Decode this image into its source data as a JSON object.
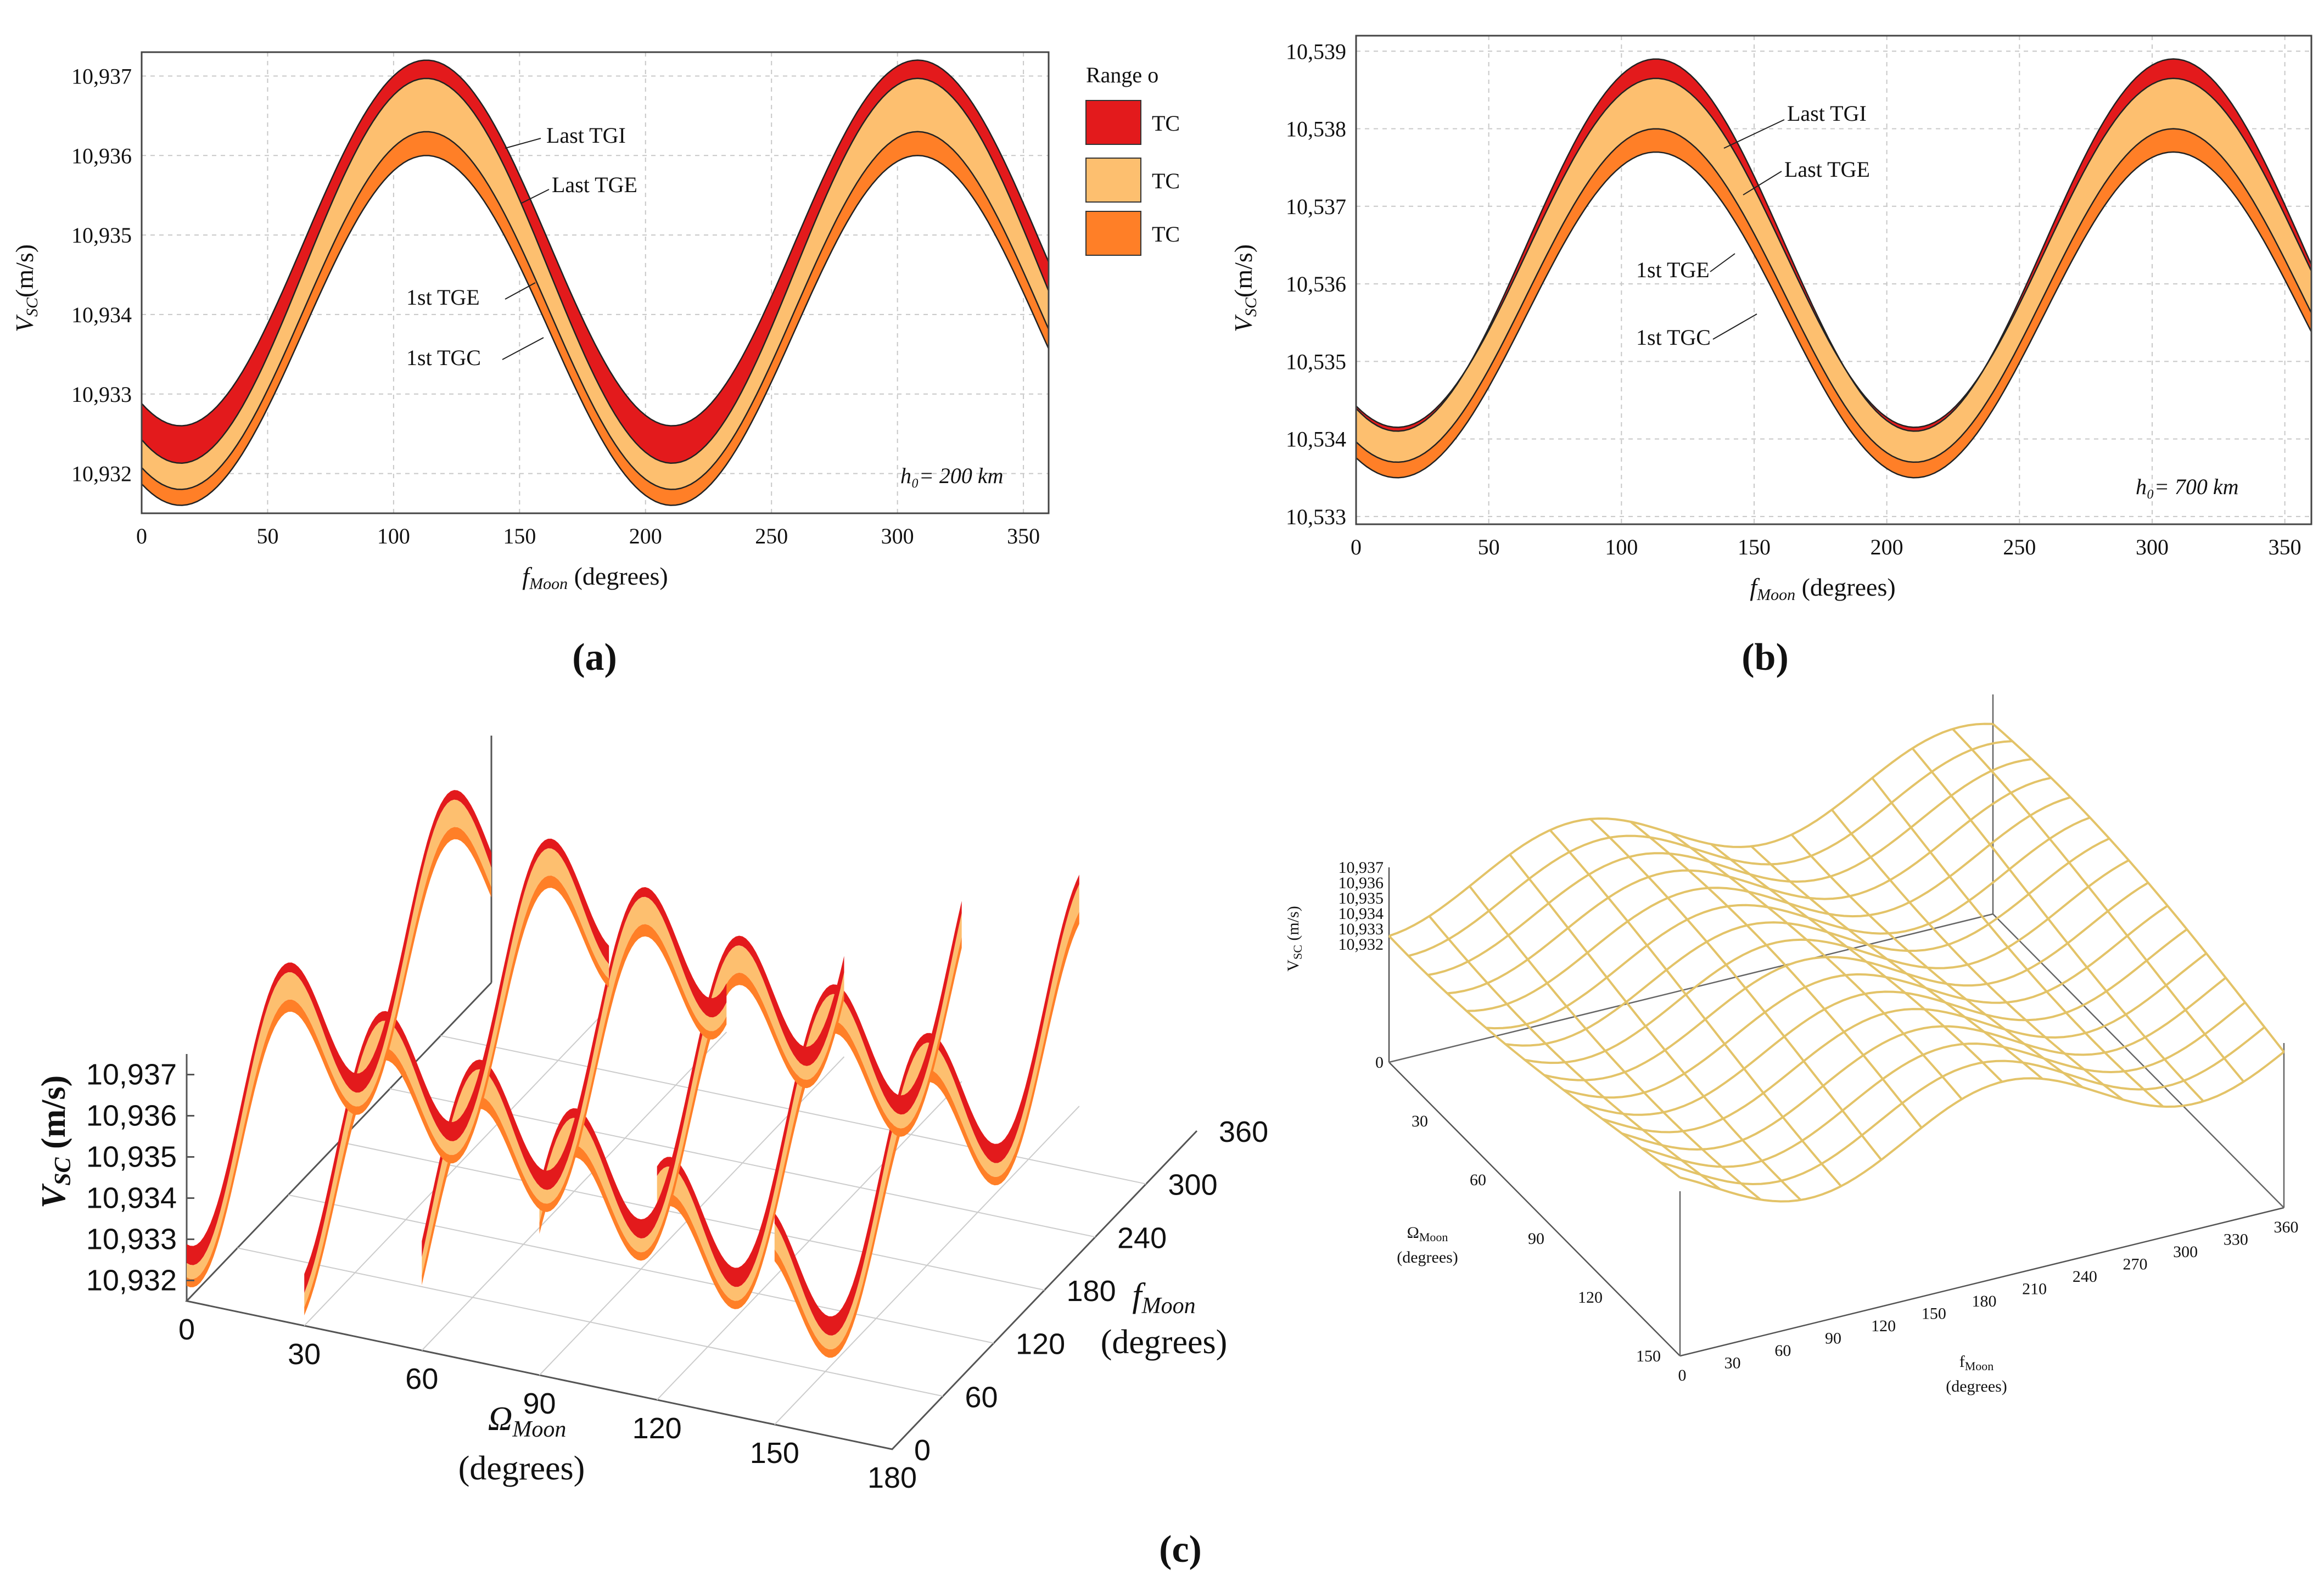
{
  "chart_data": [
    {
      "panel": "(a)",
      "type": "area",
      "xlabel": "f_Moon (degrees)",
      "ylabel": "V_SC (m/s)",
      "xlim": [
        0,
        360
      ],
      "ylim": [
        10.9315,
        10.9373
      ],
      "xticks": [
        0,
        50,
        100,
        150,
        200,
        250,
        300,
        350
      ],
      "yticks": [
        "10,932",
        "10,933",
        "10,934",
        "10,935",
        "10,936",
        "10,937"
      ],
      "boundaries": {
        "1st TGC": {
          "mean": 10.9338,
          "amp": 0.0022
        },
        "1st TGE": {
          "mean": 10.93405,
          "amp": 0.00225
        },
        "Last TGE": {
          "mean": 10.93455,
          "amp": 0.00242
        },
        "Last TGI": {
          "mean": 10.9349,
          "amp": 0.0023
        }
      },
      "phase_deg": 113,
      "period_deg": 195,
      "annotation": "h₀= 200 km",
      "legend": {
        "title": "Range o",
        "entries": [
          "TC",
          "TC",
          "TC"
        ],
        "colors": [
          "#e31a1c",
          "#fdbf6f",
          "#ff7f27"
        ]
      }
    },
    {
      "panel": "(b)",
      "type": "area",
      "xlabel": "f_Moon (degrees)",
      "ylabel": "V_SC (m/s)",
      "xlim": [
        0,
        360
      ],
      "ylim": [
        10.5329,
        10.5392
      ],
      "xticks": [
        0,
        50,
        100,
        150,
        200,
        250,
        300,
        350
      ],
      "yticks": [
        "10,533",
        "10,534",
        "10,535",
        "10,536",
        "10,537",
        "10,538",
        "10,539"
      ],
      "boundaries": {
        "1st TGC": {
          "mean": 10.5356,
          "amp": 0.0021
        },
        "1st TGE": {
          "mean": 10.53585,
          "amp": 0.00215
        },
        "Last TGE": {
          "mean": 10.5364,
          "amp": 0.00225
        },
        "Last TGI": {
          "mean": 10.5365,
          "amp": 0.0024
        }
      },
      "phase_deg": 113,
      "period_deg": 195,
      "annotation": "h₀= 700 km"
    },
    {
      "panel": "(c)-left",
      "type": "line",
      "zlabel": "V_SC (m/s)",
      "xlabel": "Ω_Moon (degrees)",
      "ylabel": "f_Moon (degrees)",
      "zticks": [
        "10,932",
        "10,933",
        "10,934",
        "10,935",
        "10,936",
        "10,937"
      ],
      "omega_ticks": [
        "0",
        "30",
        "60",
        "90",
        "120",
        "150",
        "180"
      ],
      "f_ticks": [
        "0",
        "60",
        "120",
        "180",
        "240",
        "300",
        "360"
      ]
    },
    {
      "panel": "(c)-right",
      "type": "line",
      "zlabel": "V SC (m/s)",
      "xlabel": "f Moon (degrees)",
      "ylabel": "Ω Moon (degrees)",
      "zticks": [
        "10,937",
        "10,936",
        "10,935",
        "10,934",
        "10,933",
        "10,932",
        "0"
      ],
      "omega_ticks": [
        "30",
        "60",
        "90",
        "120",
        "150"
      ],
      "f_ticks": [
        "0",
        "30",
        "60",
        "90",
        "120",
        "150",
        "180",
        "210",
        "240",
        "270",
        "300",
        "330",
        "360"
      ]
    }
  ],
  "labels": {
    "a": {
      "yaxis": "(m/s)",
      "yvar": "V",
      "ysub": "SC",
      "xvar": "f",
      "xsub": "Moon",
      "xunit": " (degrees)",
      "ann_last_tgi": "Last TGI",
      "ann_last_tge": "Last TGE",
      "ann_1st_tge": "1st TGE",
      "ann_1st_tgc": "1st TGC",
      "h": "h₀= 200 km",
      "panel": "(a)",
      "legend_title": "Range o",
      "legend_1": "TC",
      "legend_2": "TC",
      "legend_3": "TC"
    },
    "b": {
      "yaxis": "(m/s)",
      "yvar": "V",
      "ysub": "SC",
      "xvar": "f",
      "xsub": "Moon",
      "xunit": " (degrees)",
      "ann_last_tgi": "Last TGI",
      "ann_last_tge": "Last TGE",
      "ann_1st_tge": "1st TGE",
      "ann_1st_tgc": "1st TGC",
      "h": "h₀= 700 km",
      "panel": "(b)"
    },
    "c": {
      "panel": "(c)",
      "left_z": "V",
      "left_zsub": "SC",
      "left_zunit": " (m/s)",
      "left_omega": "Ω",
      "left_omega_sub": "Moon",
      "left_omega_unit": "(degrees)",
      "left_f": "f",
      "left_f_sub": "Moon",
      "left_f_unit": "(degrees)",
      "right_z": "V",
      "right_zsub": "SC",
      "right_zunit": " (m/s)",
      "right_omega": "Ω",
      "right_omega_sub": "Moon",
      "right_omega_unit": "(degrees)",
      "right_f": "f",
      "right_f_sub": "Moon",
      "right_f_unit": "(degrees)"
    }
  },
  "colors": {
    "red": "#e31a1c",
    "light": "#fdbf6f",
    "orange": "#ff7f27",
    "wire": "#e3c368"
  }
}
